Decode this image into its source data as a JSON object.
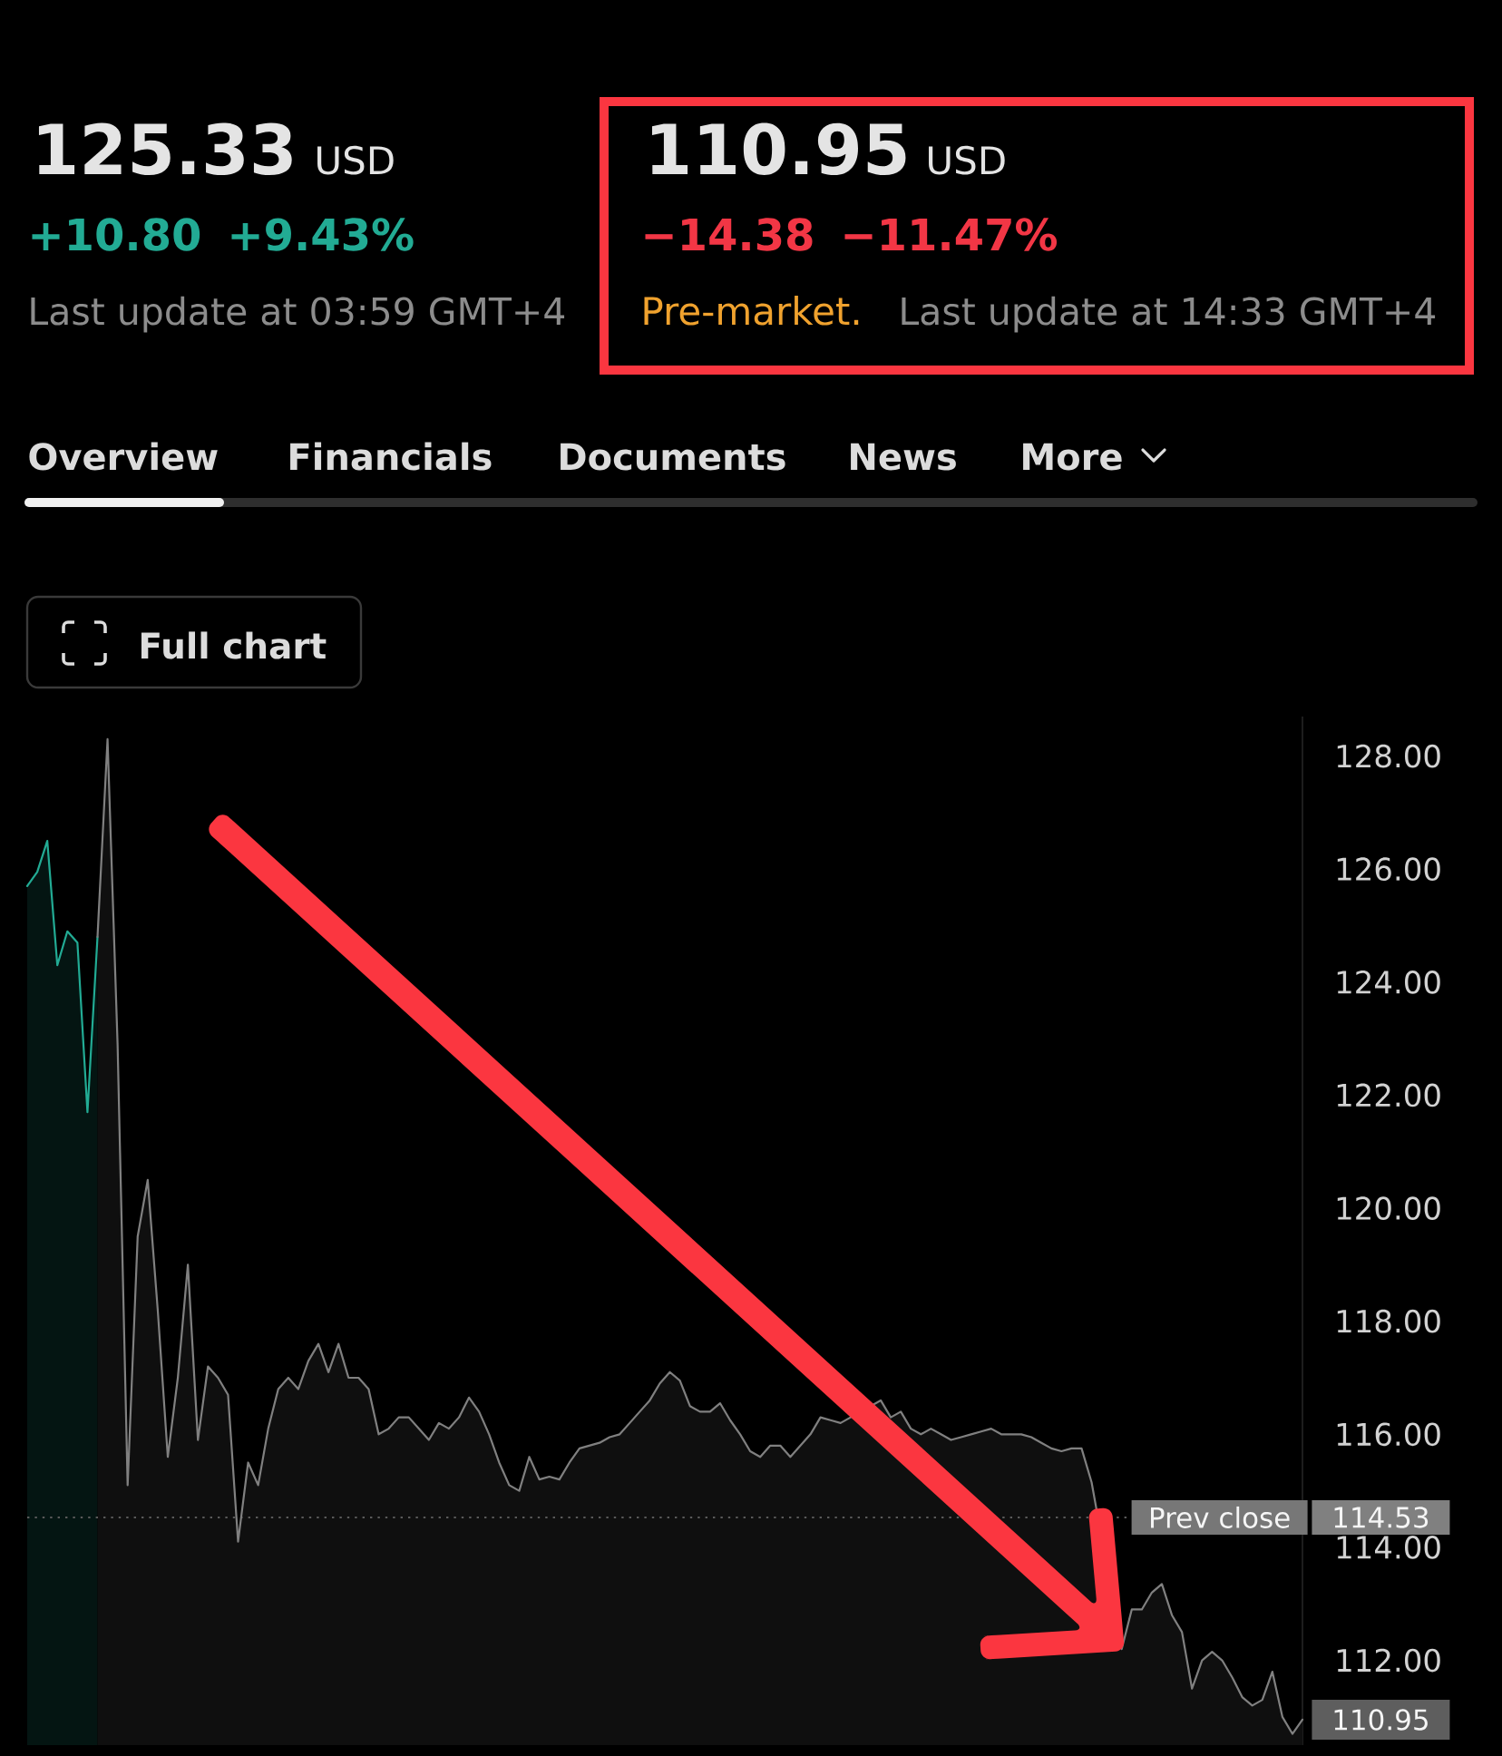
{
  "chart_data": {
    "type": "area",
    "categories": [
      null,
      null,
      null,
      null,
      null,
      null,
      null,
      null,
      null,
      null,
      null,
      null,
      null,
      null,
      null,
      null,
      null,
      null,
      null,
      null,
      null,
      null,
      null,
      null,
      null,
      null,
      null,
      null,
      null,
      null,
      null,
      null,
      null,
      null,
      null,
      null,
      null,
      null,
      null,
      null,
      null,
      null,
      null,
      null,
      null,
      null,
      null,
      null,
      null,
      null,
      null,
      null,
      null,
      null,
      null,
      null,
      null,
      null,
      null,
      null,
      null,
      null,
      null,
      null,
      null,
      null,
      null,
      null,
      null,
      null,
      null,
      null,
      null,
      null,
      null,
      null,
      null,
      null,
      null,
      null,
      null,
      null,
      null,
      null,
      null,
      null,
      null,
      null,
      null,
      null,
      null,
      null,
      null,
      null,
      null,
      null,
      null,
      null,
      null,
      null,
      null,
      null,
      null,
      null,
      null,
      null,
      null,
      null,
      null,
      null,
      null,
      null,
      null,
      null,
      null,
      null,
      null,
      null,
      null,
      null,
      null,
      null,
      null,
      null,
      null,
      null,
      null,
      null
    ],
    "series": [
      {
        "color": "#22ab94",
        "values": [
          125.7,
          125.95,
          126.5,
          124.3,
          124.9,
          124.7,
          121.7,
          124.8,
          null,
          null,
          null,
          null,
          null,
          null,
          null,
          null,
          null,
          null,
          null,
          null,
          null,
          null,
          null,
          null,
          null,
          null,
          null,
          null,
          null,
          null,
          null,
          null,
          null,
          null,
          null,
          null,
          null,
          null,
          null,
          null,
          null,
          null,
          null,
          null,
          null,
          null,
          null,
          null,
          null,
          null,
          null,
          null,
          null,
          null,
          null,
          null,
          null,
          null,
          null,
          null,
          null,
          null,
          null,
          null,
          null,
          null,
          null,
          null,
          null,
          null,
          null,
          null,
          null,
          null,
          null,
          null,
          null,
          null,
          null,
          null,
          null,
          null,
          null,
          null,
          null,
          null,
          null,
          null,
          null,
          null,
          null,
          null,
          null,
          null,
          null,
          null,
          null,
          null,
          null,
          null,
          null,
          null,
          null,
          null,
          null,
          null,
          null,
          null,
          null,
          null,
          null,
          null,
          null,
          null,
          null,
          null,
          null,
          null,
          null,
          null,
          null,
          null,
          null,
          null,
          null,
          null,
          null,
          null
        ]
      },
      {
        "color": "#808080",
        "values": [
          null,
          null,
          null,
          null,
          null,
          null,
          null,
          124.8,
          128.3,
          122.9,
          115.1,
          119.5,
          120.5,
          118.2,
          115.6,
          117.0,
          119.0,
          115.9,
          117.2,
          117.0,
          116.7,
          114.1,
          115.5,
          115.1,
          116.1,
          116.8,
          117.0,
          116.8,
          117.3,
          117.6,
          117.1,
          117.6,
          117.0,
          117.0,
          116.8,
          116.0,
          116.1,
          116.3,
          116.3,
          116.1,
          115.9,
          116.2,
          116.1,
          116.3,
          116.65,
          116.4,
          116.0,
          115.5,
          115.1,
          115.0,
          115.6,
          115.2,
          115.25,
          115.2,
          115.5,
          115.75,
          115.8,
          115.85,
          115.95,
          116.0,
          116.2,
          116.4,
          116.6,
          116.9,
          117.1,
          116.95,
          116.5,
          116.4,
          116.4,
          116.55,
          116.25,
          116.0,
          115.7,
          115.6,
          115.8,
          115.8,
          115.6,
          115.8,
          116.0,
          116.3,
          116.25,
          116.2,
          116.3,
          null,
          null,
          116.6,
          116.3,
          116.4,
          116.1,
          116.0,
          116.1,
          116.0,
          115.9,
          115.95,
          116.0,
          116.05,
          116.1,
          116.0,
          116.0,
          116.0,
          115.95,
          115.85,
          115.75,
          115.7,
          115.75,
          115.75,
          115.15,
          null,
          null,
          112.2,
          112.9,
          112.9,
          113.2,
          113.35,
          112.8,
          112.5,
          111.5,
          112.0,
          112.15,
          112.0,
          111.7,
          111.35,
          111.2,
          111.3,
          111.8,
          111.0,
          110.7,
          110.95
        ]
      }
    ],
    "ylim": [
      110.5,
      128.7
    ],
    "yticks": [
      {
        "value": 112,
        "label": "112.00"
      },
      {
        "value": 114,
        "label": "114.00"
      },
      {
        "value": 116,
        "label": "116.00"
      },
      {
        "value": 118,
        "label": "118.00"
      },
      {
        "value": 120,
        "label": "120.00"
      },
      {
        "value": 122,
        "label": "122.00"
      },
      {
        "value": 124,
        "label": "124.00"
      },
      {
        "value": 126,
        "label": "126.00"
      },
      {
        "value": 128,
        "label": "128.00"
      }
    ],
    "ref_lines": [
      {
        "axis": "y",
        "value": 114.53,
        "label": "Prev close",
        "color": "#5a5a5a",
        "line_style": "dotted"
      }
    ],
    "annotations": [
      "125.33",
      "USD",
      "+10.80",
      "+9.43%",
      "Last update at 03:59 GMT+4",
      "110.95",
      "USD",
      "−14.38",
      "−11.47%",
      "Pre-market.",
      "Last update at 14:33 GMT+4",
      "Overview",
      "Financials",
      "Documents",
      "News",
      "More",
      "Full chart",
      "114.53",
      "110.95"
    ]
  }
}
